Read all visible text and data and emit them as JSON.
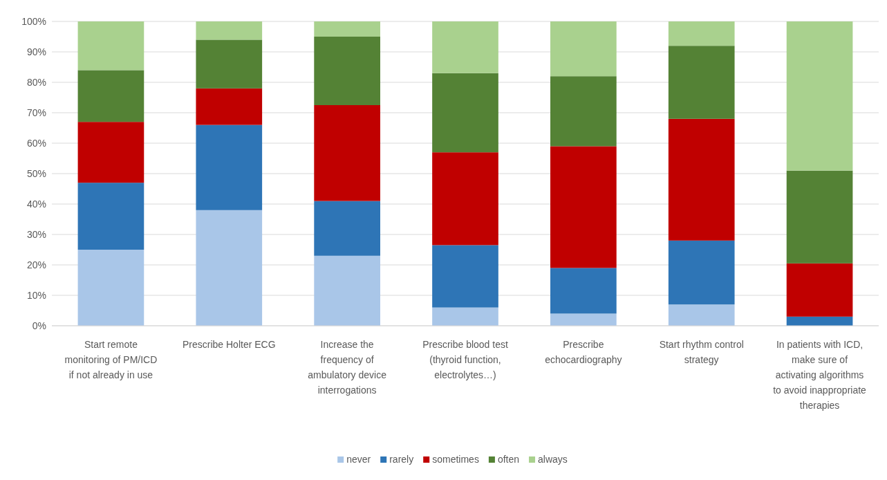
{
  "chart_data": {
    "type": "bar",
    "stacked": true,
    "categories": [
      "Start remote monitoring of PM/ICD if not already in use",
      "Prescribe Holter ECG",
      "Increase the frequency of ambulatory device interrogations",
      "Prescribe blood test (thyroid function, electrolytes…)",
      "Prescribe echocardiography",
      "Start rhythm control strategy",
      "In patients with ICD, make sure of activating algorithms to avoid inappropriate therapies"
    ],
    "series": [
      {
        "name": "never",
        "color": "#a9c6e8",
        "values": [
          25,
          38,
          23,
          6,
          4,
          7,
          0
        ]
      },
      {
        "name": "rarely",
        "color": "#2e75b6",
        "values": [
          22,
          28,
          18,
          20.5,
          15,
          21,
          3
        ]
      },
      {
        "name": "sometimes",
        "color": "#c00000",
        "values": [
          20,
          12,
          31.5,
          30.5,
          40,
          40,
          17.5
        ]
      },
      {
        "name": "often",
        "color": "#548235",
        "values": [
          17,
          16,
          22.5,
          26,
          23,
          24,
          30.5
        ]
      },
      {
        "name": "always",
        "color": "#a9d18e",
        "values": [
          16,
          6,
          5,
          17,
          18,
          8,
          49
        ]
      }
    ],
    "ylim": [
      0,
      100
    ],
    "yticks": [
      {
        "value": 0,
        "label": "0%"
      },
      {
        "value": 10,
        "label": "10%"
      },
      {
        "value": 20,
        "label": "20%"
      },
      {
        "value": 30,
        "label": "30%"
      },
      {
        "value": 40,
        "label": "40%"
      },
      {
        "value": 50,
        "label": "50%"
      },
      {
        "value": 60,
        "label": "60%"
      },
      {
        "value": 70,
        "label": "70%"
      },
      {
        "value": 80,
        "label": "80%"
      },
      {
        "value": 90,
        "label": "90%"
      },
      {
        "value": 100,
        "label": "100%"
      }
    ],
    "grid": "y",
    "legend": "bottom"
  }
}
